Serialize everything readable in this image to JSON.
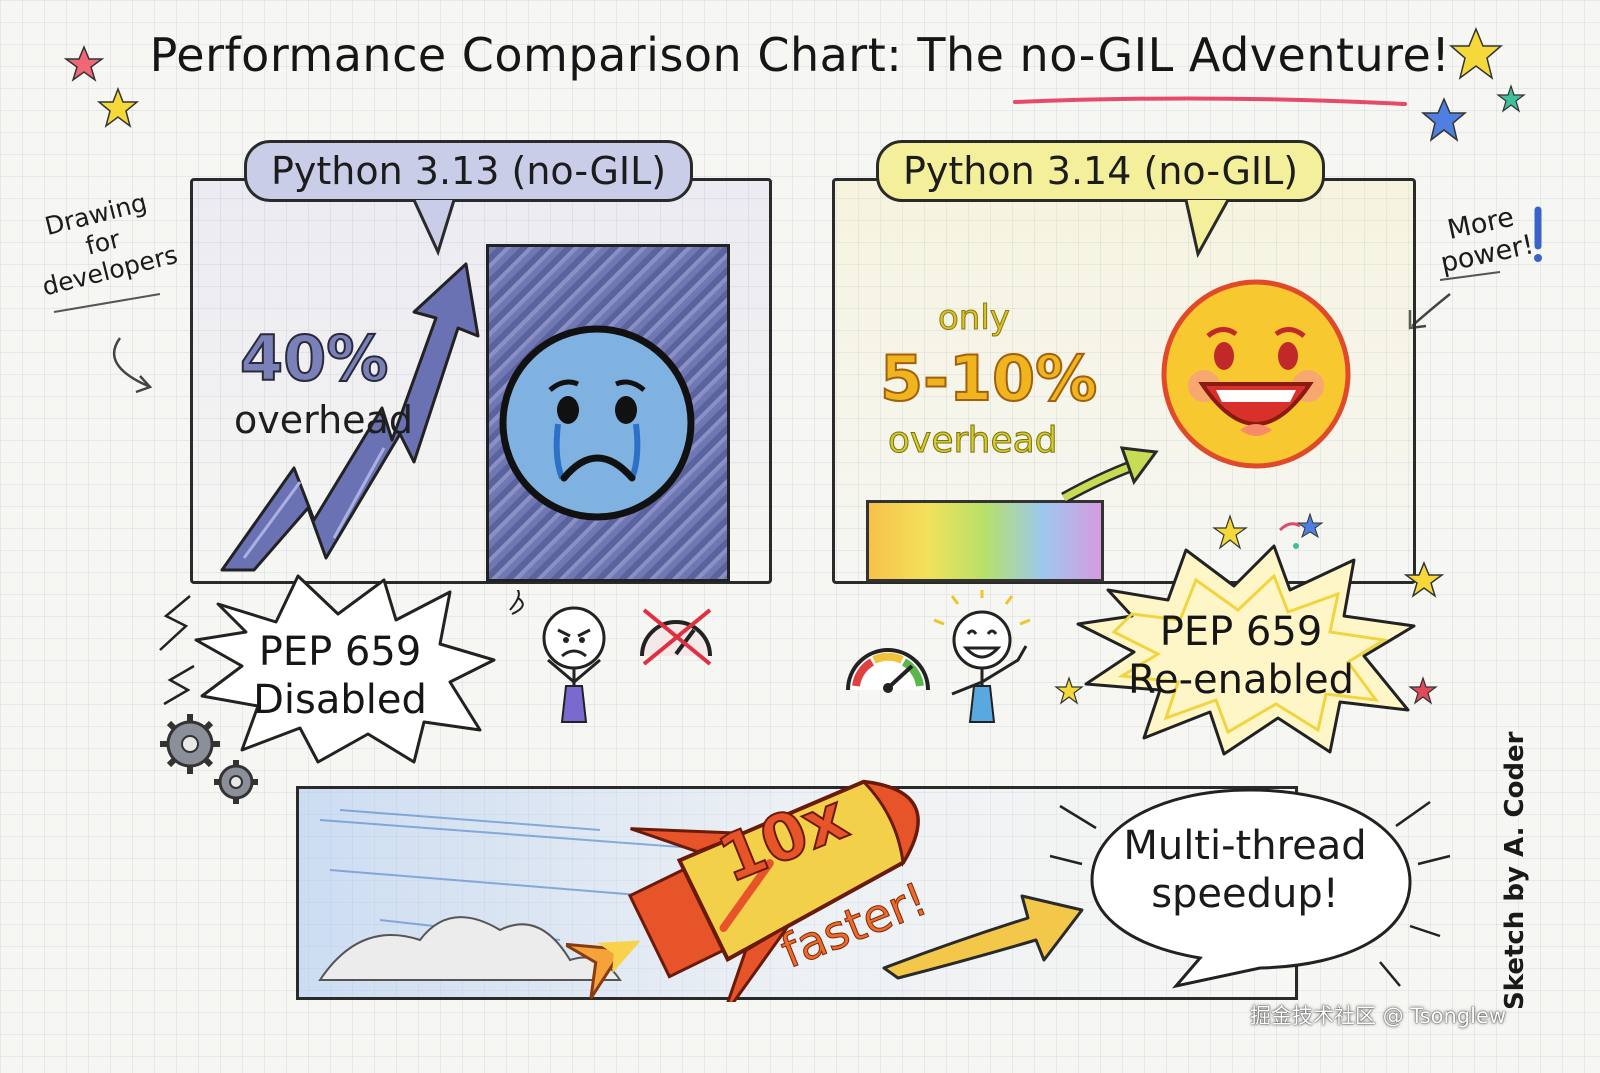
{
  "title": "Performance Comparison Chart: The no-GIL Adventure!",
  "left_panel": {
    "header": "Python 3.13 (no-GIL)",
    "overhead_value": "40%",
    "overhead_label": "overhead",
    "burst_line1": "PEP 659",
    "burst_line2": "Disabled"
  },
  "right_panel": {
    "header": "Python 3.14 (no-GIL)",
    "overhead_prefix": "only",
    "overhead_value": "5-10%",
    "overhead_label": "overhead",
    "burst_line1": "PEP 659",
    "burst_line2": "Re-enabled"
  },
  "side_notes": {
    "left": [
      "Drawing",
      "for",
      "developers"
    ],
    "right": [
      "More",
      "power!"
    ]
  },
  "bottom": {
    "speed_value": "10x",
    "speed_label": "faster!",
    "speech_line1": "Multi-thread",
    "speech_line2": "speedup!"
  },
  "signature": "Sketch by A. Coder",
  "watermark": "掘金技术社区 @ Tsonglew",
  "colors": {
    "left_accent": "#7a80b8",
    "right_accent": "#f0b41e",
    "rocket": "#e8542a"
  },
  "icons": [
    "sad-face-icon",
    "happy-face-icon",
    "rocket-icon",
    "gear-icon",
    "speedometer-icon",
    "star-icon",
    "arrow-icon"
  ]
}
